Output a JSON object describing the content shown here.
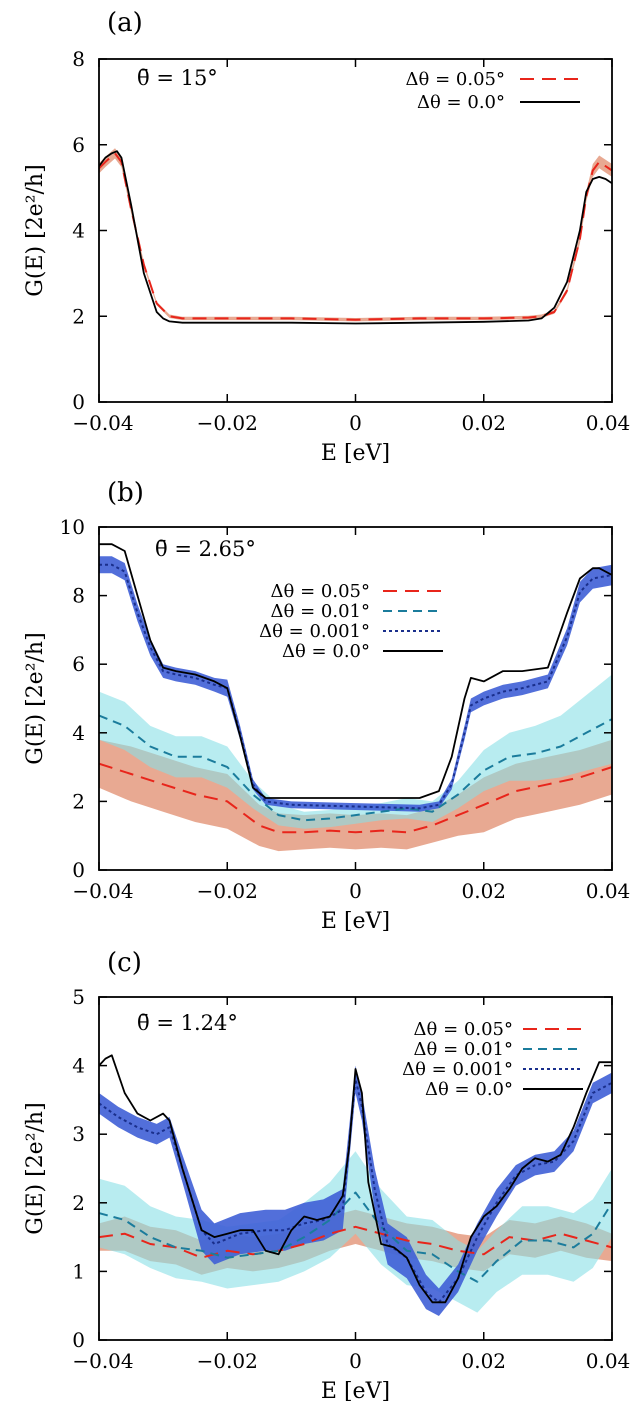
{
  "figure": {
    "panels": [
      {
        "label": "(a)",
        "annotation": "θ̄ = 15°",
        "xlabel": "E [eV]",
        "ylabel": "G(E) [2e²/h]",
        "xlim": [
          -0.04,
          0.04
        ],
        "ylim": [
          0,
          8
        ],
        "xticks": [
          "−0.04",
          "−0.02",
          "0",
          "0.02",
          "0.04"
        ],
        "yticks": [
          "0",
          "2",
          "4",
          "6",
          "8"
        ]
      },
      {
        "label": "(b)",
        "annotation": "θ̄ = 2.65°",
        "xlabel": "E [eV]",
        "ylabel": "G(E) [2e²/h]",
        "xlim": [
          -0.04,
          0.04
        ],
        "ylim": [
          0,
          10
        ],
        "xticks": [
          "−0.04",
          "−0.02",
          "0",
          "0.02",
          "0.04"
        ],
        "yticks": [
          "0",
          "2",
          "4",
          "6",
          "8",
          "10"
        ]
      },
      {
        "label": "(c)",
        "annotation": "θ̄ = 1.24°",
        "xlabel": "E [eV]",
        "ylabel": "G(E) [2e²/h]",
        "xlim": [
          -0.04,
          0.04
        ],
        "ylim": [
          0,
          5
        ],
        "xticks": [
          "−0.04",
          "−0.02",
          "0",
          "0.02",
          "0.04"
        ],
        "yticks": [
          "0",
          "1",
          "2",
          "3",
          "4",
          "5"
        ]
      }
    ]
  },
  "colors": {
    "s005_line": "#e8251b",
    "s005_band": "#d9704a",
    "s001_line": "#1b7c9c",
    "s001_band": "#88e0e6",
    "s0001_line": "#1a2f8c",
    "s0001_band": "#3f5fd6",
    "s0_line": "#000000"
  },
  "chart_data": [
    {
      "type": "line",
      "title": "",
      "xlabel": "E [eV]",
      "ylabel": "G(E) [2e²/h]",
      "xlim": [
        -0.04,
        0.04
      ],
      "ylim": [
        0,
        8
      ],
      "grid": false,
      "legend_position": "top-right",
      "series": [
        {
          "name": "Δθ = 0.05°",
          "style": "long-dash",
          "color": "#e8251b",
          "x": [
            -0.04,
            -0.039,
            -0.0375,
            -0.0365,
            -0.035,
            -0.033,
            -0.031,
            -0.029,
            -0.027,
            -0.02,
            -0.01,
            0,
            0.01,
            0.02,
            0.027,
            0.029,
            0.031,
            0.033,
            0.035,
            0.036,
            0.037,
            0.038,
            0.039,
            0.04
          ],
          "y": [
            5.45,
            5.6,
            5.8,
            5.6,
            4.5,
            3.2,
            2.3,
            2.0,
            1.95,
            1.95,
            1.95,
            1.92,
            1.95,
            1.95,
            1.97,
            2.0,
            2.1,
            2.6,
            3.8,
            4.8,
            5.4,
            5.6,
            5.5,
            5.4
          ],
          "band": [
            0.12,
            0.12,
            0.12,
            0.12,
            0.1,
            0.06,
            0.04,
            0.04,
            0.04,
            0.04,
            0.04,
            0.04,
            0.04,
            0.04,
            0.04,
            0.04,
            0.04,
            0.06,
            0.1,
            0.12,
            0.15,
            0.15,
            0.15,
            0.15
          ]
        },
        {
          "name": "Δθ = 0.0°",
          "style": "solid",
          "color": "#000000",
          "x": [
            -0.04,
            -0.039,
            -0.038,
            -0.0372,
            -0.0365,
            -0.035,
            -0.033,
            -0.031,
            -0.03,
            -0.029,
            -0.027,
            -0.02,
            -0.01,
            0,
            0.01,
            0.02,
            0.027,
            0.029,
            0.031,
            0.033,
            0.035,
            0.036,
            0.037,
            0.038,
            0.039,
            0.04
          ],
          "y": [
            5.5,
            5.7,
            5.8,
            5.85,
            5.7,
            4.6,
            3.0,
            2.1,
            1.95,
            1.88,
            1.85,
            1.85,
            1.85,
            1.83,
            1.85,
            1.87,
            1.9,
            1.95,
            2.2,
            2.8,
            4.0,
            4.9,
            5.2,
            5.25,
            5.2,
            5.1
          ]
        }
      ]
    },
    {
      "type": "line",
      "title": "",
      "xlabel": "E [eV]",
      "ylabel": "G(E) [2e²/h]",
      "xlim": [
        -0.04,
        0.04
      ],
      "ylim": [
        0,
        10
      ],
      "grid": false,
      "legend_position": "top-center",
      "series": [
        {
          "name": "Δθ = 0.05°",
          "style": "long-dash",
          "color": "#e8251b",
          "x": [
            -0.04,
            -0.035,
            -0.03,
            -0.025,
            -0.02,
            -0.015,
            -0.012,
            -0.008,
            -0.004,
            0,
            0.004,
            0.008,
            0.012,
            0.016,
            0.02,
            0.025,
            0.03,
            0.035,
            0.04
          ],
          "y": [
            3.1,
            2.8,
            2.5,
            2.2,
            2.0,
            1.3,
            1.1,
            1.1,
            1.15,
            1.1,
            1.15,
            1.1,
            1.3,
            1.6,
            1.9,
            2.3,
            2.5,
            2.7,
            3.0
          ],
          "band": [
            0.7,
            0.8,
            0.8,
            0.8,
            0.8,
            0.6,
            0.55,
            0.5,
            0.5,
            0.5,
            0.5,
            0.5,
            0.5,
            0.6,
            0.8,
            0.8,
            0.8,
            0.8,
            0.8
          ]
        },
        {
          "name": "Δθ = 0.01°",
          "style": "dash",
          "color": "#1b7c9c",
          "x": [
            -0.04,
            -0.036,
            -0.032,
            -0.028,
            -0.024,
            -0.02,
            -0.016,
            -0.012,
            -0.008,
            -0.004,
            0,
            0.004,
            0.008,
            0.012,
            0.016,
            0.02,
            0.024,
            0.028,
            0.032,
            0.036,
            0.04
          ],
          "y": [
            4.5,
            4.2,
            3.6,
            3.3,
            3.3,
            3.0,
            2.2,
            1.6,
            1.45,
            1.5,
            1.6,
            1.7,
            1.8,
            1.7,
            2.2,
            2.9,
            3.3,
            3.4,
            3.6,
            4.0,
            4.4
          ],
          "band": [
            0.7,
            0.7,
            0.6,
            0.6,
            0.6,
            0.6,
            0.4,
            0.3,
            0.25,
            0.25,
            0.25,
            0.25,
            0.3,
            0.3,
            0.4,
            0.6,
            0.7,
            0.8,
            0.9,
            1.1,
            1.3
          ]
        },
        {
          "name": "Δθ = 0.001°",
          "style": "dotted",
          "color": "#1a2f8c",
          "x": [
            -0.04,
            -0.038,
            -0.036,
            -0.034,
            -0.032,
            -0.03,
            -0.028,
            -0.025,
            -0.022,
            -0.02,
            -0.018,
            -0.016,
            -0.014,
            -0.01,
            0,
            0.01,
            0.013,
            0.015,
            0.017,
            0.018,
            0.02,
            0.023,
            0.026,
            0.03,
            0.033,
            0.035,
            0.037,
            0.04
          ],
          "y": [
            8.9,
            8.9,
            8.7,
            7.5,
            6.5,
            5.8,
            5.7,
            5.6,
            5.4,
            5.3,
            4.0,
            2.5,
            2.0,
            1.9,
            1.85,
            1.8,
            1.9,
            2.5,
            4.0,
            4.8,
            5.0,
            5.2,
            5.3,
            5.5,
            6.8,
            8.1,
            8.5,
            8.6
          ],
          "band": [
            0.25,
            0.25,
            0.25,
            0.25,
            0.25,
            0.2,
            0.2,
            0.2,
            0.2,
            0.25,
            0.2,
            0.15,
            0.1,
            0.1,
            0.1,
            0.1,
            0.1,
            0.15,
            0.2,
            0.2,
            0.2,
            0.2,
            0.2,
            0.2,
            0.25,
            0.3,
            0.3,
            0.3
          ]
        },
        {
          "name": "Δθ = 0.0°",
          "style": "solid",
          "color": "#000000",
          "x": [
            -0.04,
            -0.038,
            -0.036,
            -0.034,
            -0.032,
            -0.03,
            -0.028,
            -0.025,
            -0.022,
            -0.02,
            -0.018,
            -0.016,
            -0.014,
            -0.01,
            0,
            0.01,
            0.013,
            0.015,
            0.017,
            0.018,
            0.02,
            0.023,
            0.026,
            0.03,
            0.033,
            0.035,
            0.037,
            0.038,
            0.04
          ],
          "y": [
            9.5,
            9.5,
            9.3,
            8.0,
            6.7,
            5.9,
            5.8,
            5.7,
            5.5,
            5.3,
            3.9,
            2.4,
            2.1,
            2.1,
            2.1,
            2.1,
            2.3,
            3.3,
            5.0,
            5.6,
            5.5,
            5.8,
            5.8,
            5.9,
            7.5,
            8.5,
            8.8,
            8.8,
            8.6
          ]
        }
      ]
    },
    {
      "type": "line",
      "title": "",
      "xlabel": "E [eV]",
      "ylabel": "G(E) [2e²/h]",
      "xlim": [
        -0.04,
        0.04
      ],
      "ylim": [
        0,
        5
      ],
      "grid": false,
      "legend_position": "top-right",
      "series": [
        {
          "name": "Δθ = 0.05°",
          "style": "long-dash",
          "color": "#e8251b",
          "x": [
            -0.04,
            -0.036,
            -0.032,
            -0.028,
            -0.024,
            -0.02,
            -0.016,
            -0.012,
            -0.008,
            -0.004,
            0,
            0.004,
            0.008,
            0.012,
            0.016,
            0.02,
            0.024,
            0.028,
            0.032,
            0.036,
            0.04
          ],
          "y": [
            1.5,
            1.55,
            1.4,
            1.35,
            1.2,
            1.3,
            1.25,
            1.3,
            1.4,
            1.55,
            1.65,
            1.55,
            1.45,
            1.4,
            1.3,
            1.25,
            1.5,
            1.45,
            1.55,
            1.45,
            1.35
          ],
          "band": [
            0.2,
            0.25,
            0.25,
            0.25,
            0.25,
            0.25,
            0.25,
            0.25,
            0.25,
            0.25,
            0.25,
            0.25,
            0.25,
            0.25,
            0.25,
            0.25,
            0.25,
            0.25,
            0.25,
            0.25,
            0.2
          ]
        },
        {
          "name": "Δθ = 0.01°",
          "style": "dash",
          "color": "#1b7c9c",
          "x": [
            -0.04,
            -0.036,
            -0.032,
            -0.028,
            -0.024,
            -0.02,
            -0.016,
            -0.012,
            -0.008,
            -0.004,
            0,
            0.004,
            0.008,
            0.012,
            0.016,
            0.019,
            0.022,
            0.026,
            0.03,
            0.034,
            0.037,
            0.04
          ],
          "y": [
            1.85,
            1.75,
            1.5,
            1.35,
            1.3,
            1.2,
            1.25,
            1.3,
            1.5,
            1.75,
            2.15,
            1.65,
            1.3,
            1.25,
            1.0,
            0.85,
            1.15,
            1.45,
            1.45,
            1.35,
            1.55,
            2.0
          ],
          "band": [
            0.5,
            0.5,
            0.45,
            0.45,
            0.45,
            0.45,
            0.45,
            0.45,
            0.5,
            0.55,
            0.6,
            0.55,
            0.5,
            0.5,
            0.45,
            0.45,
            0.45,
            0.5,
            0.5,
            0.5,
            0.5,
            0.5
          ]
        },
        {
          "name": "Δθ = 0.001°",
          "style": "dotted",
          "color": "#1a2f8c",
          "x": [
            -0.04,
            -0.037,
            -0.034,
            -0.031,
            -0.029,
            -0.027,
            -0.024,
            -0.022,
            -0.018,
            -0.014,
            -0.011,
            -0.008,
            -0.005,
            -0.002,
            0,
            0.001,
            0.003,
            0.005,
            0.008,
            0.011,
            0.013,
            0.016,
            0.019,
            0.022,
            0.025,
            0.028,
            0.031,
            0.034,
            0.037,
            0.04
          ],
          "y": [
            3.45,
            3.25,
            3.1,
            3.0,
            3.1,
            2.5,
            1.6,
            1.4,
            1.55,
            1.6,
            1.6,
            1.7,
            1.75,
            1.9,
            3.8,
            3.4,
            2.2,
            1.4,
            1.2,
            0.7,
            0.55,
            0.9,
            1.5,
            2.0,
            2.4,
            2.55,
            2.6,
            2.9,
            3.6,
            3.75
          ],
          "band": [
            0.15,
            0.15,
            0.15,
            0.15,
            0.15,
            0.2,
            0.3,
            0.3,
            0.3,
            0.3,
            0.3,
            0.3,
            0.3,
            0.3,
            0.2,
            0.2,
            0.3,
            0.3,
            0.3,
            0.25,
            0.2,
            0.2,
            0.2,
            0.2,
            0.15,
            0.15,
            0.15,
            0.15,
            0.15,
            0.15
          ]
        },
        {
          "name": "Δθ = 0.0°",
          "style": "solid",
          "color": "#000000",
          "x": [
            -0.04,
            -0.039,
            -0.038,
            -0.036,
            -0.034,
            -0.032,
            -0.03,
            -0.029,
            -0.027,
            -0.024,
            -0.022,
            -0.02,
            -0.018,
            -0.016,
            -0.014,
            -0.012,
            -0.01,
            -0.008,
            -0.006,
            -0.004,
            -0.002,
            -0.001,
            0,
            0.001,
            0.002,
            0.004,
            0.006,
            0.008,
            0.01,
            0.012,
            0.014,
            0.016,
            0.018,
            0.02,
            0.022,
            0.024,
            0.026,
            0.028,
            0.03,
            0.032,
            0.034,
            0.036,
            0.038,
            0.04
          ],
          "y": [
            4.0,
            4.1,
            4.15,
            3.6,
            3.3,
            3.2,
            3.3,
            3.2,
            2.5,
            1.6,
            1.5,
            1.55,
            1.6,
            1.6,
            1.3,
            1.25,
            1.6,
            1.8,
            1.75,
            1.8,
            2.1,
            2.8,
            3.95,
            3.6,
            2.3,
            1.4,
            1.35,
            1.2,
            0.8,
            0.55,
            0.55,
            0.9,
            1.5,
            1.8,
            1.95,
            2.2,
            2.5,
            2.65,
            2.6,
            2.7,
            3.1,
            3.6,
            4.05,
            4.05
          ]
        }
      ]
    }
  ]
}
